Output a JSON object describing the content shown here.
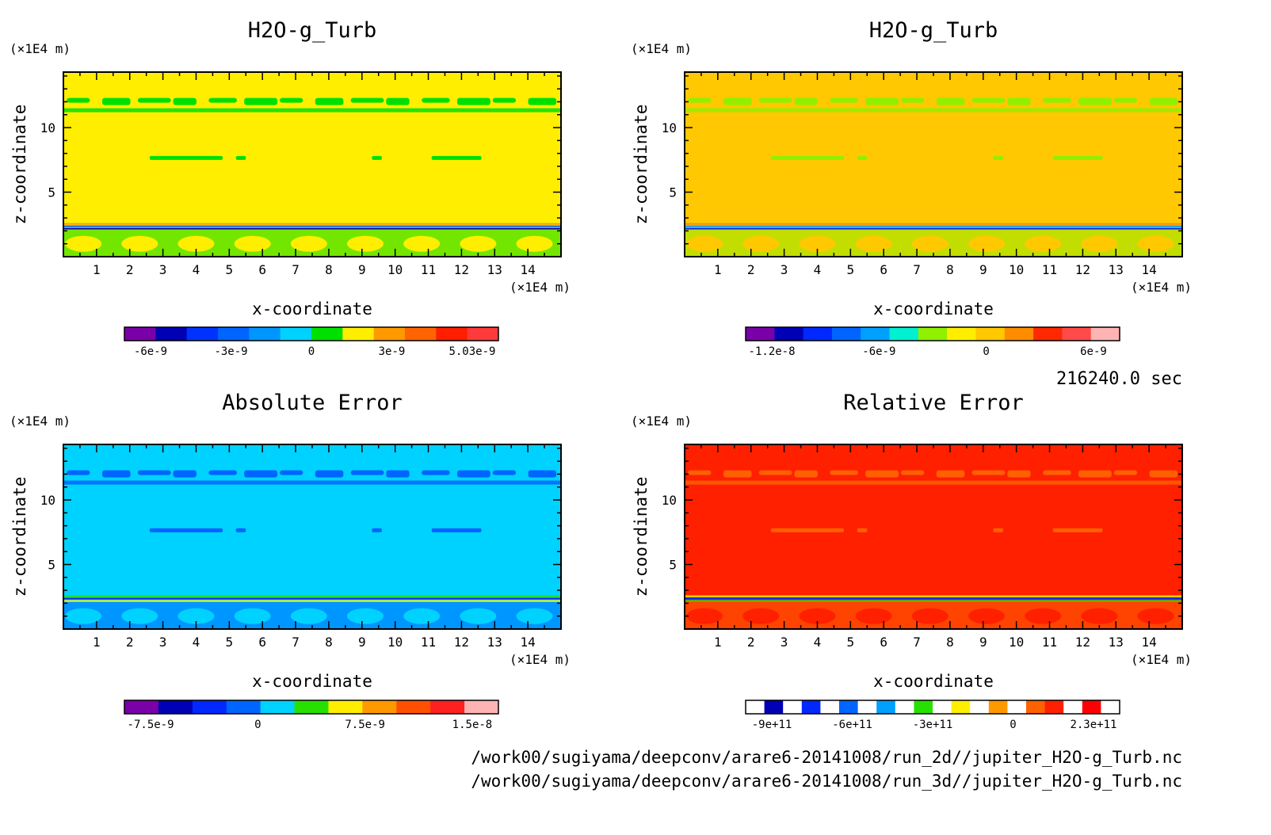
{
  "chart_data": [
    {
      "type": "heatmap",
      "title": "H2O-g_Turb",
      "xlabel": "x-coordinate",
      "ylabel": "z-coordinate",
      "x_unit": "(×1E4 m)",
      "y_unit": "(×1E4 m)",
      "xlim": [
        0,
        15
      ],
      "ylim": [
        0,
        14.3
      ],
      "xticks": [
        "1",
        "2",
        "3",
        "4",
        "5",
        "6",
        "7",
        "8",
        "9",
        "10",
        "11",
        "12",
        "13",
        "14"
      ],
      "yticks": [
        "5",
        "10"
      ],
      "background": "#ffee00",
      "colorbar": {
        "colors": [
          "#7a00a8",
          "#0000b4",
          "#0032ff",
          "#0064ff",
          "#0096ff",
          "#00d2ff",
          "#00e000",
          "#ffee00",
          "#ff9900",
          "#ff6400",
          "#ff1e00",
          "#ff3a3a"
        ],
        "labels": [
          "-6e-9",
          "-3e-9",
          "0",
          "3e-9",
          "5.03e-9"
        ]
      }
    },
    {
      "type": "heatmap",
      "title": "H2O-g_Turb",
      "xlabel": "x-coordinate",
      "ylabel": "z-coordinate",
      "x_unit": "(×1E4 m)",
      "y_unit": "(×1E4 m)",
      "xlim": [
        0,
        15
      ],
      "ylim": [
        0,
        14.3
      ],
      "xticks": [
        "1",
        "2",
        "3",
        "4",
        "5",
        "6",
        "7",
        "8",
        "9",
        "10",
        "11",
        "12",
        "13",
        "14"
      ],
      "yticks": [
        "5",
        "10"
      ],
      "background": "#ffc800",
      "colorbar": {
        "colors": [
          "#7a00a8",
          "#0000b4",
          "#0028ff",
          "#0064ff",
          "#00a0ff",
          "#00f0d0",
          "#90f000",
          "#ffee00",
          "#ffc800",
          "#ff8c00",
          "#ff2800",
          "#ff4a4a",
          "#ffb4b4"
        ],
        "labels": [
          "-1.2e-8",
          "-6e-9",
          "0",
          "6e-9"
        ]
      }
    },
    {
      "type": "heatmap",
      "title": "Absolute Error",
      "xlabel": "x-coordinate",
      "ylabel": "z-coordinate",
      "x_unit": "(×1E4 m)",
      "y_unit": "(×1E4 m)",
      "xlim": [
        0,
        15
      ],
      "ylim": [
        0,
        14.3
      ],
      "xticks": [
        "1",
        "2",
        "3",
        "4",
        "5",
        "6",
        "7",
        "8",
        "9",
        "10",
        "11",
        "12",
        "13",
        "14"
      ],
      "yticks": [
        "5",
        "10"
      ],
      "background": "#00d2ff",
      "colorbar": {
        "colors": [
          "#7a00a8",
          "#0000b4",
          "#0028ff",
          "#0064ff",
          "#00d2ff",
          "#28e000",
          "#ffee00",
          "#ff9900",
          "#ff5000",
          "#ff2020",
          "#ffb4b4"
        ],
        "labels": [
          "-7.5e-9",
          "0",
          "7.5e-9",
          "1.5e-8"
        ]
      }
    },
    {
      "type": "heatmap",
      "title": "Relative Error",
      "xlabel": "x-coordinate",
      "ylabel": "z-coordinate",
      "x_unit": "(×1E4 m)",
      "y_unit": "(×1E4 m)",
      "xlim": [
        0,
        15
      ],
      "ylim": [
        0,
        14.3
      ],
      "xticks": [
        "1",
        "2",
        "3",
        "4",
        "5",
        "6",
        "7",
        "8",
        "9",
        "10",
        "11",
        "12",
        "13",
        "14"
      ],
      "yticks": [
        "5",
        "10"
      ],
      "background": "#ff2000",
      "colorbar": {
        "colors": [
          "#ffffff",
          "#0000b4",
          "#ffffff",
          "#0028ff",
          "#ffffff",
          "#0064ff",
          "#ffffff",
          "#00a0ff",
          "#ffffff",
          "#28e000",
          "#ffffff",
          "#ffee00",
          "#ffffff",
          "#ff9900",
          "#ffffff",
          "#ff6000",
          "#ff2000",
          "#ffffff",
          "#ff0000",
          "#ffffff"
        ],
        "labels": [
          "-9e+11",
          "-6e+11",
          "-3e+11",
          "0",
          "2.3e+11"
        ]
      }
    }
  ],
  "time_label": "216240.0 sec",
  "footer": {
    "line1": "/work00/sugiyama/deepconv/arare6-20141008/run_2d//jupiter_H2O-g_Turb.nc",
    "line2": "/work00/sugiyama/deepconv/arare6-20141008/run_3d//jupiter_H2O-g_Turb.nc"
  }
}
